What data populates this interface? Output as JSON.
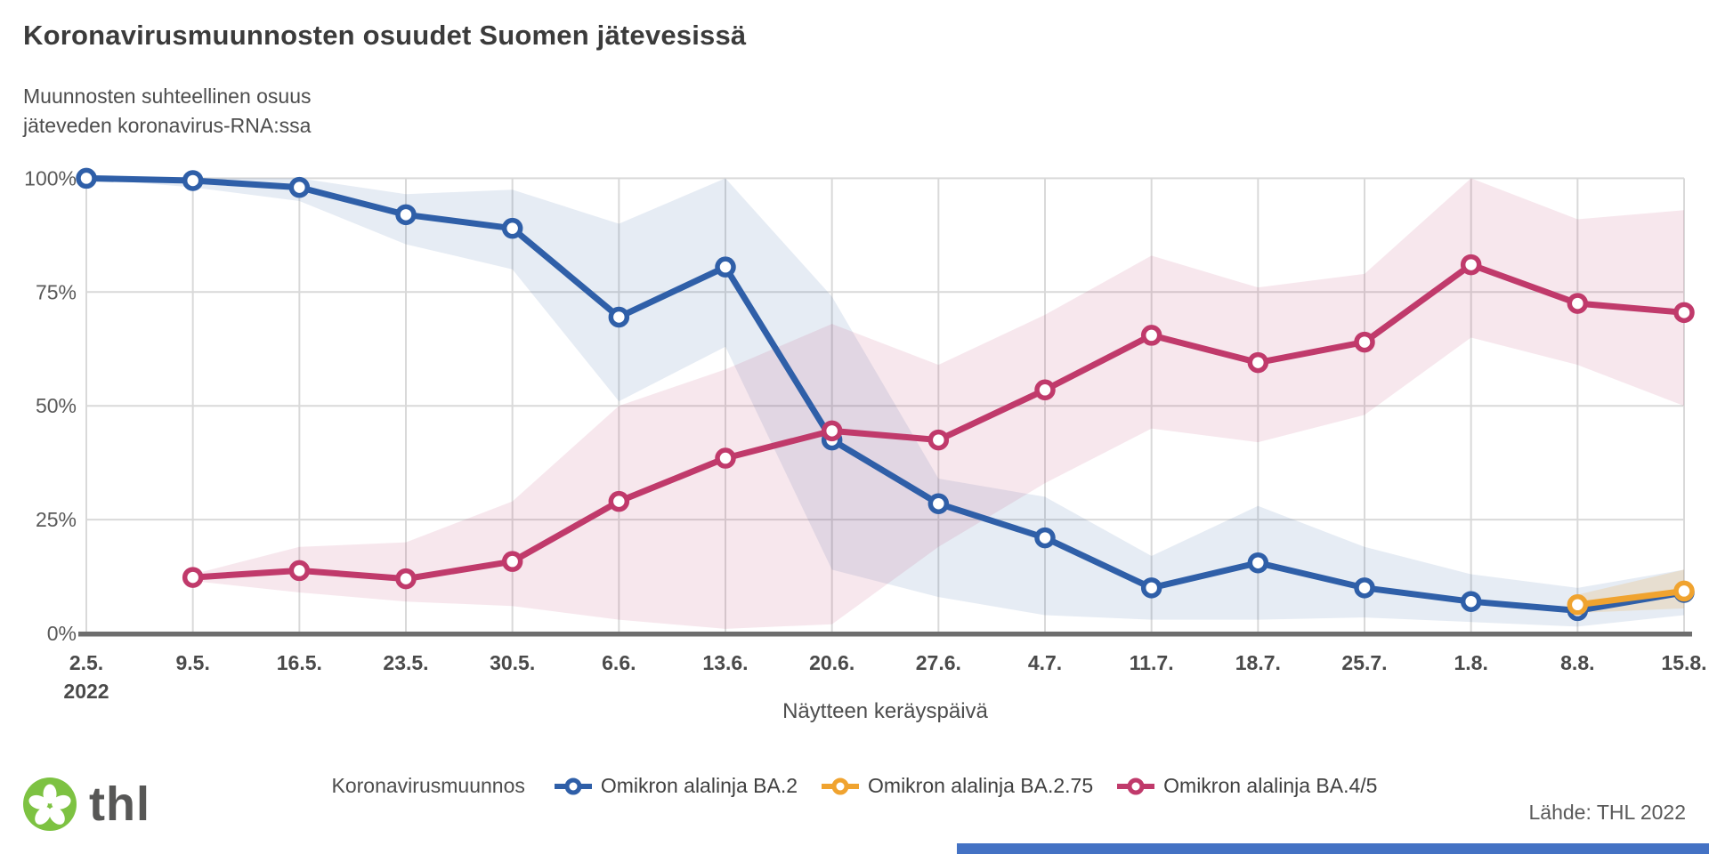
{
  "header": {
    "title": "Koronavirusmuunnosten osuudet Suomen jätevesissä",
    "subtitle_line1": "Muunnosten suhteellinen osuus",
    "subtitle_line2": "jäteveden koronavirus-RNA:ssa"
  },
  "chart_data": {
    "type": "line",
    "title": "Koronavirusmuunnosten osuudet Suomen jätevesissä",
    "xlabel": "Näytteen keräyspäivä",
    "ylabel": "Muunnosten suhteellinen osuus jäteveden koronavirus-RNA:ssa",
    "ylim": [
      0,
      100
    ],
    "grid": true,
    "legend_position": "bottom",
    "yticks": [
      "0%",
      "25%",
      "50%",
      "75%",
      "100%"
    ],
    "ytick_values": [
      0,
      25,
      50,
      75,
      100
    ],
    "categories": [
      "2.5.",
      "9.5.",
      "16.5.",
      "23.5.",
      "30.5.",
      "6.6.",
      "13.6.",
      "20.6.",
      "27.6.",
      "4.7.",
      "11.7.",
      "18.7.",
      "25.7.",
      "1.8.",
      "8.8.",
      "15.8."
    ],
    "x_first_tick_year": "2022",
    "series": [
      {
        "id": "ba2",
        "name": "Omikron alalinja BA.2",
        "color": "#2f5fa8",
        "band_color": "rgba(47,95,168,0.12)",
        "values": [
          100,
          99.5,
          98,
          92,
          89,
          69.5,
          80.5,
          42.5,
          28.5,
          21,
          10,
          15.5,
          10,
          7,
          5,
          9
        ],
        "band_upper": [
          100,
          100,
          100,
          96.5,
          97.5,
          90,
          100,
          74,
          34,
          30,
          17,
          28,
          19,
          13,
          10,
          14
        ],
        "band_lower": [
          100,
          98,
          95,
          85.5,
          80,
          51,
          63,
          14,
          8,
          4,
          3,
          3,
          3.5,
          2.5,
          1.5,
          4
        ]
      },
      {
        "id": "ba45",
        "name": "Omikron alalinja BA.4/5",
        "color": "#c03a6b",
        "band_color": "rgba(192,58,107,0.12)",
        "values": [
          null,
          12.3,
          13.8,
          12,
          15.8,
          29,
          38.5,
          44.5,
          42.5,
          53.5,
          65.5,
          59.5,
          64,
          81,
          72.5,
          70.5
        ],
        "band_upper": [
          null,
          13,
          19,
          20,
          29,
          50,
          58,
          68,
          59,
          70,
          83,
          76,
          79,
          100,
          91,
          93
        ],
        "band_lower": [
          null,
          11.5,
          9,
          7,
          6,
          3,
          1,
          2,
          19,
          33,
          45,
          42,
          48,
          65,
          59,
          50
        ]
      },
      {
        "id": "ba275",
        "name": "Omikron alalinja BA.2.75",
        "color": "#f0a32f",
        "band_color": "rgba(240,163,47,0.18)",
        "values": [
          null,
          null,
          null,
          null,
          null,
          null,
          null,
          null,
          null,
          null,
          null,
          null,
          null,
          null,
          6.3,
          9.3
        ],
        "band_upper": [
          null,
          null,
          null,
          null,
          null,
          null,
          null,
          null,
          null,
          null,
          null,
          null,
          null,
          null,
          8.5,
          14
        ],
        "band_lower": [
          null,
          null,
          null,
          null,
          null,
          null,
          null,
          null,
          null,
          null,
          null,
          null,
          null,
          null,
          4.5,
          5.5
        ]
      }
    ]
  },
  "legend": {
    "title": "Koronavirusmuunnos",
    "items": [
      {
        "label": "Omikron alalinja BA.2",
        "color": "#2f5fa8"
      },
      {
        "label": "Omikron alalinja BA.2.75",
        "color": "#f0a32f"
      },
      {
        "label": "Omikron alalinja BA.4/5",
        "color": "#c03a6b"
      }
    ]
  },
  "footer": {
    "logo_text": "thl",
    "source": "Lähde: THL 2022"
  },
  "colors": {
    "ba2_blue": "#2f5fa8",
    "ba275_orange": "#f0a32f",
    "ba45_magenta": "#c03a6b",
    "gridline": "#d9d9d9",
    "axis_line": "#6e6e6e",
    "thl_green": "#7dc242",
    "bottom_bar_blue": "#4472c4"
  }
}
